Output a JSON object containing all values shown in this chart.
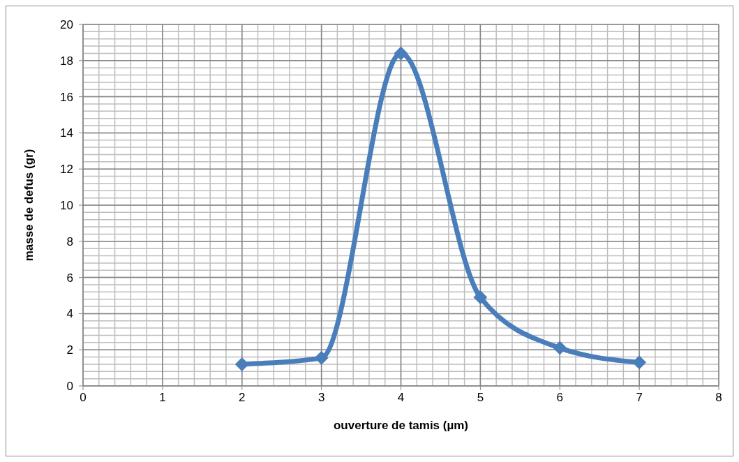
{
  "chart_data": {
    "type": "line",
    "xlabel": "ouverture de tamis (µm)",
    "ylabel": "masse de defus (gr)",
    "x": [
      2,
      3,
      4,
      5,
      6,
      7
    ],
    "series": [
      {
        "color": "#4a7ebb",
        "values": [
          1.2,
          1.55,
          18.4,
          4.9,
          2.1,
          1.3
        ]
      }
    ],
    "xlim": [
      0,
      8
    ],
    "ylim": [
      0,
      20
    ],
    "xticks": [
      0,
      {
        "value": 0.2,
        "label": null
      },
      {
        "value": 0.4,
        "label": null
      },
      {
        "value": 0.6,
        "label": null
      },
      {
        "value": 0.8,
        "label": null
      },
      1,
      {
        "value": 1.2,
        "label": null
      },
      {
        "value": 1.4,
        "label": null
      },
      {
        "value": 1.6,
        "label": null
      },
      {
        "value": 1.8,
        "label": null
      },
      2,
      {
        "value": 2.2,
        "label": null
      },
      {
        "value": 2.4,
        "label": null
      },
      {
        "value": 2.6,
        "label": null
      },
      {
        "value": 2.8,
        "label": null
      },
      3,
      {
        "value": 3.2,
        "label": null
      },
      {
        "value": 3.4,
        "label": null
      },
      {
        "value": 3.6,
        "label": null
      },
      {
        "value": 3.8,
        "label": null
      },
      4,
      {
        "value": 4.2,
        "label": null
      },
      {
        "value": 4.4,
        "label": null
      },
      {
        "value": 4.6,
        "label": null
      },
      {
        "value": 4.8,
        "label": null
      },
      5,
      {
        "value": 5.2,
        "label": null
      },
      {
        "value": 5.4,
        "label": null
      },
      {
        "value": 5.6,
        "label": null
      },
      {
        "value": 5.8,
        "label": null
      },
      6,
      {
        "value": 6.2,
        "label": null
      },
      {
        "value": 6.4,
        "label": null
      },
      {
        "value": 6.6,
        "label": null
      },
      {
        "value": 6.8,
        "label": null
      },
      7,
      {
        "value": 7.2,
        "label": null
      },
      {
        "value": 7.4,
        "label": null
      },
      {
        "value": 7.6,
        "label": null
      },
      {
        "value": 7.8,
        "label": null
      },
      8
    ],
    "yticks": [
      0,
      {
        "value": 0.4,
        "label": null
      },
      {
        "value": 0.8,
        "label": null
      },
      {
        "value": 1.2,
        "label": null
      },
      {
        "value": 1.6,
        "label": null
      },
      2,
      {
        "value": 2.4,
        "label": null
      },
      {
        "value": 2.8,
        "label": null
      },
      {
        "value": 3.2,
        "label": null
      },
      {
        "value": 3.6,
        "label": null
      },
      4,
      {
        "value": 4.4,
        "label": null
      },
      {
        "value": 4.8,
        "label": null
      },
      {
        "value": 5.2,
        "label": null
      },
      {
        "value": 5.6,
        "label": null
      },
      6,
      {
        "value": 6.4,
        "label": null
      },
      {
        "value": 6.8,
        "label": null
      },
      {
        "value": 7.2,
        "label": null
      },
      {
        "value": 7.6,
        "label": null
      },
      8,
      {
        "value": 8.4,
        "label": null
      },
      {
        "value": 8.8,
        "label": null
      },
      {
        "value": 9.2,
        "label": null
      },
      {
        "value": 9.6,
        "label": null
      },
      10,
      {
        "value": 10.4,
        "label": null
      },
      {
        "value": 10.8,
        "label": null
      },
      {
        "value": 11.2,
        "label": null
      },
      {
        "value": 11.6,
        "label": null
      },
      12,
      {
        "value": 12.4,
        "label": null
      },
      {
        "value": 12.8,
        "label": null
      },
      {
        "value": 13.2,
        "label": null
      },
      {
        "value": 13.6,
        "label": null
      },
      14,
      {
        "value": 14.4,
        "label": null
      },
      {
        "value": 14.8,
        "label": null
      },
      {
        "value": 15.2,
        "label": null
      },
      {
        "value": 15.6,
        "label": null
      },
      16,
      {
        "value": 16.4,
        "label": null
      },
      {
        "value": 16.8,
        "label": null
      },
      {
        "value": 17.2,
        "label": null
      },
      {
        "value": 17.6,
        "label": null
      },
      18,
      {
        "value": 18.4,
        "label": null
      },
      {
        "value": 18.8,
        "label": null
      },
      {
        "value": 19.2,
        "label": null
      },
      {
        "value": 19.6,
        "label": null
      },
      20
    ],
    "grid": true,
    "marker": "diamond",
    "line_style": "solid",
    "legend": false
  }
}
